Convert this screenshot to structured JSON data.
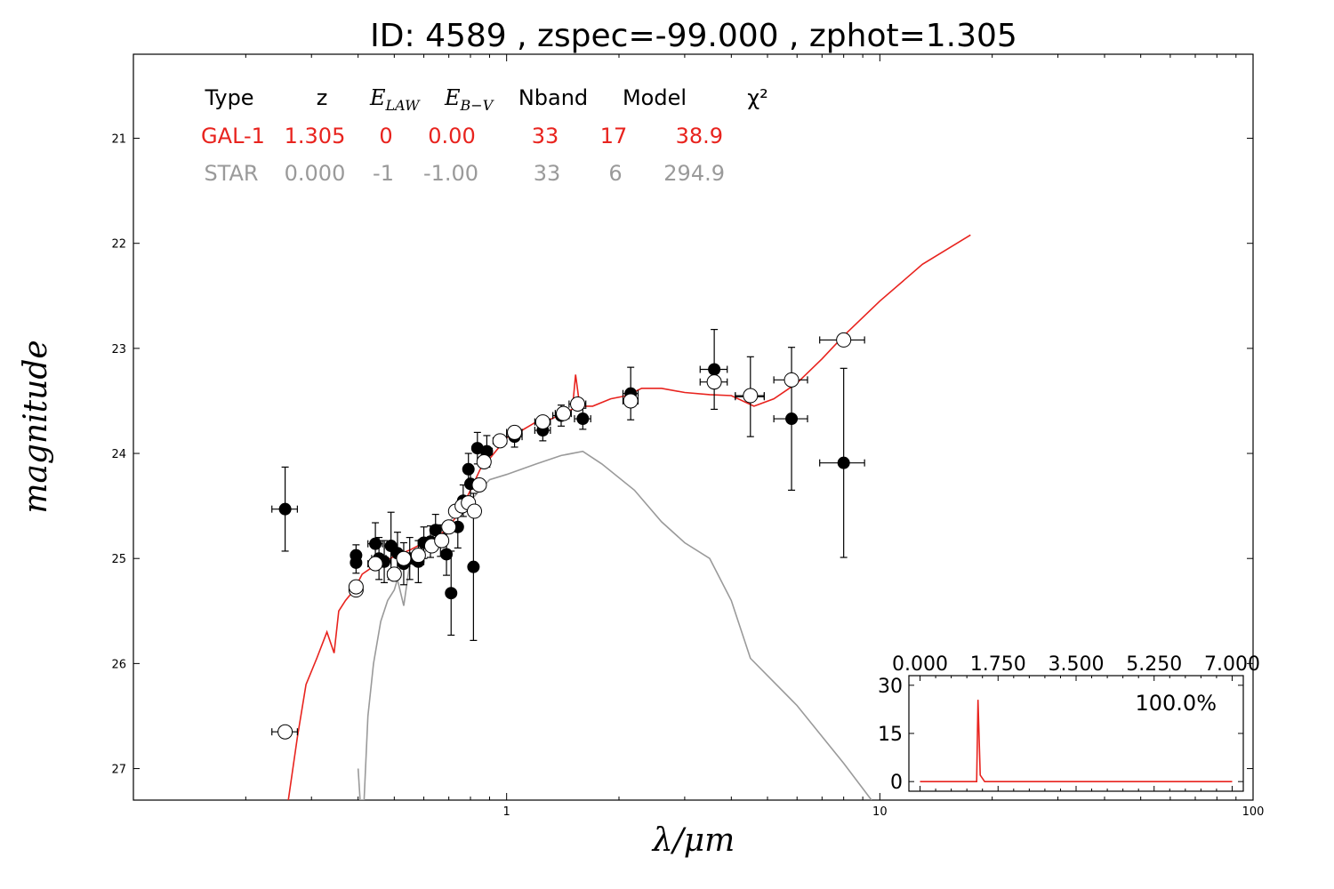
{
  "chart_data": [
    {
      "type": "scatter",
      "title": "ID:  4589  , zspec=-99.000 , zphot=1.305",
      "xlabel": "λ/μm",
      "ylabel": "magnitude",
      "xscale": "log",
      "xlim": [
        0.1,
        100
      ],
      "ylim": [
        27.3,
        20.2
      ],
      "yaxis_inverted": true,
      "x_ticks": [
        1,
        10,
        100
      ],
      "x_tick_labels": [
        "1",
        "10",
        "100"
      ],
      "y_ticks": [
        21,
        22,
        23,
        24,
        25,
        26,
        27
      ],
      "y_tick_labels": [
        "21",
        "22",
        "23",
        "24",
        "25",
        "26",
        "27"
      ],
      "grid": false,
      "legend_table": {
        "headers": [
          "Type",
          "z",
          "E_LAW",
          "E_B-V",
          "Nband",
          "Model",
          "χ²"
        ],
        "rows": [
          {
            "type": "GAL-1",
            "z": "1.305",
            "elaw": "0",
            "ebv": "0.00",
            "nband": "33",
            "model": "17",
            "chi2": "38.9",
            "color": "#e8231e"
          },
          {
            "type": "STAR",
            "z": "0.000",
            "elaw": "-1",
            "ebv": "-1.00",
            "nband": "33",
            "model": "6",
            "chi2": "294.9",
            "color": "#9a9a9a"
          }
        ]
      },
      "series": [
        {
          "name": "GAL-1",
          "kind": "line",
          "color": "#e8231e",
          "points": [
            [
              0.26,
              27.3
            ],
            [
              0.275,
              26.7
            ],
            [
              0.29,
              26.2
            ],
            [
              0.31,
              25.95
            ],
            [
              0.33,
              25.7
            ],
            [
              0.345,
              25.9
            ],
            [
              0.355,
              25.5
            ],
            [
              0.37,
              25.4
            ],
            [
              0.39,
              25.3
            ],
            [
              0.41,
              25.15
            ],
            [
              0.43,
              25.1
            ],
            [
              0.46,
              25.05
            ],
            [
              0.5,
              24.98
            ],
            [
              0.55,
              24.92
            ],
            [
              0.6,
              24.85
            ],
            [
              0.65,
              24.8
            ],
            [
              0.7,
              24.7
            ],
            [
              0.75,
              24.55
            ],
            [
              0.8,
              24.35
            ],
            [
              0.85,
              24.15
            ],
            [
              0.9,
              24.05
            ],
            [
              0.95,
              23.95
            ],
            [
              1.0,
              23.85
            ],
            [
              1.1,
              23.78
            ],
            [
              1.2,
              23.7
            ],
            [
              1.3,
              23.68
            ],
            [
              1.4,
              23.63
            ],
            [
              1.5,
              23.58
            ],
            [
              1.53,
              23.25
            ],
            [
              1.57,
              23.55
            ],
            [
              1.7,
              23.55
            ],
            [
              1.9,
              23.48
            ],
            [
              2.1,
              23.45
            ],
            [
              2.3,
              23.38
            ],
            [
              2.6,
              23.38
            ],
            [
              3.0,
              23.42
            ],
            [
              3.5,
              23.44
            ],
            [
              4.0,
              23.45
            ],
            [
              4.6,
              23.55
            ],
            [
              5.2,
              23.48
            ],
            [
              6.0,
              23.33
            ],
            [
              7.0,
              23.1
            ],
            [
              8.0,
              22.88
            ],
            [
              10.0,
              22.55
            ],
            [
              13.0,
              22.2
            ],
            [
              17.5,
              21.92
            ]
          ]
        },
        {
          "name": "STAR",
          "kind": "line",
          "color": "#9a9a9a",
          "points": [
            [
              0.4,
              27.0
            ],
            [
              0.405,
              27.3
            ],
            [
              0.415,
              27.3
            ],
            [
              0.425,
              26.5
            ],
            [
              0.44,
              26.0
            ],
            [
              0.46,
              25.6
            ],
            [
              0.48,
              25.4
            ],
            [
              0.5,
              25.3
            ],
            [
              0.51,
              25.2
            ],
            [
              0.53,
              25.45
            ],
            [
              0.55,
              25.05
            ],
            [
              0.6,
              24.95
            ],
            [
              0.7,
              24.65
            ],
            [
              0.8,
              24.45
            ],
            [
              0.9,
              24.25
            ],
            [
              1.0,
              24.2
            ],
            [
              1.2,
              24.1
            ],
            [
              1.4,
              24.02
            ],
            [
              1.6,
              23.98
            ],
            [
              1.8,
              24.1
            ],
            [
              2.2,
              24.35
            ],
            [
              2.6,
              24.65
            ],
            [
              3.0,
              24.85
            ],
            [
              3.5,
              25.0
            ],
            [
              4.0,
              25.4
            ],
            [
              4.5,
              25.95
            ],
            [
              6.0,
              26.4
            ],
            [
              8.0,
              26.95
            ],
            [
              9.5,
              27.3
            ]
          ]
        },
        {
          "name": "observed",
          "kind": "points",
          "marker": "filled-circle",
          "color": "#000000",
          "points": [
            {
              "x": 0.255,
              "y": 24.53,
              "xerr": 0.02,
              "yerr": 0.4
            },
            {
              "x": 0.395,
              "y": 24.97,
              "xerr": 0.01,
              "yerr": 0.1
            },
            {
              "x": 0.395,
              "y": 25.04,
              "xerr": 0.01,
              "yerr": 0.1
            },
            {
              "x": 0.445,
              "y": 24.86,
              "xerr": 0.02,
              "yerr": 0.2
            },
            {
              "x": 0.455,
              "y": 25.0,
              "xerr": 0.02,
              "yerr": 0.2
            },
            {
              "x": 0.47,
              "y": 25.03,
              "xerr": 0.02,
              "yerr": 0.2
            },
            {
              "x": 0.49,
              "y": 24.88,
              "xerr": 0.02,
              "yerr": 0.32
            },
            {
              "x": 0.51,
              "y": 24.95,
              "xerr": 0.02,
              "yerr": 0.2
            },
            {
              "x": 0.53,
              "y": 25.05,
              "xerr": 0.02,
              "yerr": 0.2
            },
            {
              "x": 0.55,
              "y": 25.0,
              "xerr": 0.02,
              "yerr": 0.2
            },
            {
              "x": 0.58,
              "y": 25.03,
              "xerr": 0.02,
              "yerr": 0.2
            },
            {
              "x": 0.6,
              "y": 24.85,
              "xerr": 0.02,
              "yerr": 0.15
            },
            {
              "x": 0.625,
              "y": 24.84,
              "xerr": 0.02,
              "yerr": 0.15
            },
            {
              "x": 0.645,
              "y": 24.73,
              "xerr": 0.02,
              "yerr": 0.15
            },
            {
              "x": 0.665,
              "y": 24.83,
              "xerr": 0.02,
              "yerr": 0.15
            },
            {
              "x": 0.69,
              "y": 24.96,
              "xerr": 0.02,
              "yerr": 0.2
            },
            {
              "x": 0.71,
              "y": 25.33,
              "xerr": 0.02,
              "yerr": 0.4
            },
            {
              "x": 0.74,
              "y": 24.7,
              "xerr": 0.02,
              "yerr": 0.2
            },
            {
              "x": 0.765,
              "y": 24.45,
              "xerr": 0.02,
              "yerr": 0.15
            },
            {
              "x": 0.79,
              "y": 24.15,
              "xerr": 0.02,
              "yerr": 0.15
            },
            {
              "x": 0.8,
              "y": 24.29,
              "xerr": 0.02,
              "yerr": 0.15
            },
            {
              "x": 0.815,
              "y": 25.08,
              "xerr": 0.02,
              "yerr": 0.7
            },
            {
              "x": 0.835,
              "y": 23.95,
              "xerr": 0.02,
              "yerr": 0.15
            },
            {
              "x": 0.885,
              "y": 23.98,
              "xerr": 0.03,
              "yerr": 0.15
            },
            {
              "x": 1.05,
              "y": 23.84,
              "xerr": 0.05,
              "yerr": 0.1
            },
            {
              "x": 1.25,
              "y": 23.78,
              "xerr": 0.06,
              "yerr": 0.1
            },
            {
              "x": 1.4,
              "y": 23.64,
              "xerr": 0.07,
              "yerr": 0.1
            },
            {
              "x": 1.6,
              "y": 23.67,
              "xerr": 0.08,
              "yerr": 0.1
            },
            {
              "x": 2.15,
              "y": 23.43,
              "xerr": 0.1,
              "yerr": 0.25
            },
            {
              "x": 3.6,
              "y": 23.2,
              "xerr": 0.3,
              "yerr": 0.38
            },
            {
              "x": 4.5,
              "y": 23.46,
              "xerr": 0.4,
              "yerr": 0.38
            },
            {
              "x": 5.8,
              "y": 23.67,
              "xerr": 0.6,
              "yerr": 0.68
            },
            {
              "x": 8.0,
              "y": 24.09,
              "xerr": 1.1,
              "yerr": 0.9
            }
          ]
        },
        {
          "name": "model",
          "kind": "points",
          "marker": "open-circle",
          "color": "#000000",
          "points": [
            {
              "x": 0.255,
              "y": 26.65,
              "xerr": 0.02
            },
            {
              "x": 0.395,
              "y": 25.3,
              "xerr": 0.01
            },
            {
              "x": 0.395,
              "y": 25.27,
              "xerr": 0.01
            },
            {
              "x": 0.445,
              "y": 25.05,
              "xerr": 0.02
            },
            {
              "x": 0.5,
              "y": 25.15,
              "xerr": 0.02
            },
            {
              "x": 0.53,
              "y": 25.0,
              "xerr": 0.02
            },
            {
              "x": 0.58,
              "y": 24.97,
              "xerr": 0.02
            },
            {
              "x": 0.63,
              "y": 24.88,
              "xerr": 0.02
            },
            {
              "x": 0.67,
              "y": 24.83,
              "xerr": 0.02
            },
            {
              "x": 0.7,
              "y": 24.7,
              "xerr": 0.02
            },
            {
              "x": 0.73,
              "y": 24.55,
              "xerr": 0.02
            },
            {
              "x": 0.76,
              "y": 24.5,
              "xerr": 0.02
            },
            {
              "x": 0.79,
              "y": 24.47,
              "xerr": 0.02
            },
            {
              "x": 0.82,
              "y": 24.55,
              "xerr": 0.02
            },
            {
              "x": 0.845,
              "y": 24.3,
              "xerr": 0.02
            },
            {
              "x": 0.87,
              "y": 24.08,
              "xerr": 0.02
            },
            {
              "x": 0.96,
              "y": 23.88,
              "xerr": 0.04
            },
            {
              "x": 1.05,
              "y": 23.8,
              "xerr": 0.05
            },
            {
              "x": 1.25,
              "y": 23.7,
              "xerr": 0.06
            },
            {
              "x": 1.42,
              "y": 23.62,
              "xerr": 0.07
            },
            {
              "x": 1.55,
              "y": 23.53,
              "xerr": 0.08
            },
            {
              "x": 2.15,
              "y": 23.5,
              "xerr": 0.1
            },
            {
              "x": 3.6,
              "y": 23.32,
              "xerr": 0.3
            },
            {
              "x": 4.5,
              "y": 23.45,
              "xerr": 0.4
            },
            {
              "x": 5.8,
              "y": 23.3,
              "xerr": 0.6
            },
            {
              "x": 8.0,
              "y": 22.92,
              "xerr": 1.1
            }
          ]
        }
      ]
    },
    {
      "type": "line",
      "inset": true,
      "xlim": [
        -0.25,
        7.25
      ],
      "ylim": [
        -3,
        33
      ],
      "x_ticks": [
        0,
        1.75,
        3.5,
        5.25,
        7
      ],
      "x_tick_labels": [
        "0.000",
        "1.750",
        "3.500",
        "5.250",
        "7.000"
      ],
      "x_tick_position": "top",
      "y_ticks": [
        0,
        15,
        30
      ],
      "y_tick_labels": [
        "0",
        "15",
        "30"
      ],
      "annotation": "100.0%",
      "series": [
        {
          "color": "#e8231e",
          "points": [
            [
              0,
              0
            ],
            [
              1.15,
              0
            ],
            [
              1.27,
              0
            ],
            [
              1.3,
              25.5
            ],
            [
              1.35,
              2
            ],
            [
              1.45,
              0
            ],
            [
              1.6,
              0
            ],
            [
              7,
              0
            ]
          ]
        }
      ]
    }
  ]
}
